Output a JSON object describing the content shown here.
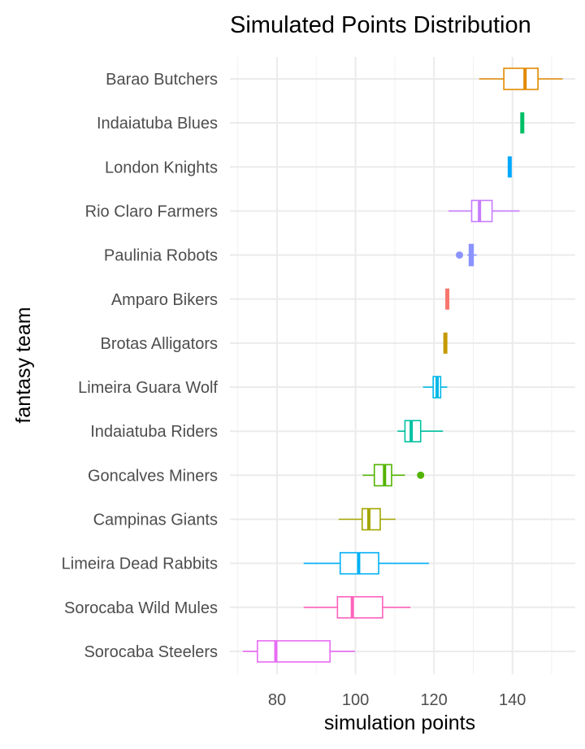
{
  "chart_data": {
    "type": "boxplot",
    "orientation": "horizontal",
    "title": "Simulated Points Distribution",
    "xlabel": "simulation points",
    "ylabel": "fantasy team",
    "xlim": [
      68,
      156
    ],
    "x_ticks": [
      80,
      100,
      120,
      140
    ],
    "grid": true,
    "legend": "none",
    "categories": [
      "Barao Butchers",
      "Indaiatuba Blues",
      "London Knights",
      "Rio Claro Farmers",
      "Paulinia Robots",
      "Amparo Bikers",
      "Brotas Alligators",
      "Limeira Guara Wolf",
      "Indaiatuba Riders",
      "Goncalves Miners",
      "Campinas Giants",
      "Limeira Dead Rabbits",
      "Sorocaba Wild Mules",
      "Sorocaba Steelers"
    ],
    "series": [
      {
        "name": "Barao Butchers",
        "color": "#E18A00",
        "whisker_low": 131.5,
        "q1": 137.8,
        "median": 143.2,
        "q3": 146.5,
        "whisker_high": 152.8,
        "outliers": []
      },
      {
        "name": "Indaiatuba Blues",
        "color": "#00BE67",
        "whisker_low": 142.5,
        "q1": 142.5,
        "median": 142.5,
        "q3": 142.5,
        "whisker_high": 142.5,
        "outliers": []
      },
      {
        "name": "London Knights",
        "color": "#00A9FF",
        "whisker_low": 139.3,
        "q1": 139.3,
        "median": 139.3,
        "q3": 139.3,
        "whisker_high": 139.3,
        "outliers": []
      },
      {
        "name": "Rio Claro Farmers",
        "color": "#C77CFF",
        "whisker_low": 123.7,
        "q1": 129.6,
        "median": 131.6,
        "q3": 134.8,
        "whisker_high": 141.8,
        "outliers": []
      },
      {
        "name": "Paulinia Robots",
        "color": "#8B93FF",
        "whisker_low": 128.5,
        "q1": 129.0,
        "median": 129.5,
        "q3": 130.0,
        "whisker_high": 130.9,
        "outliers": [
          126.5
        ]
      },
      {
        "name": "Amparo Bikers",
        "color": "#F8766D",
        "whisker_low": 123.4,
        "q1": 123.4,
        "median": 123.4,
        "q3": 123.4,
        "whisker_high": 123.4,
        "outliers": []
      },
      {
        "name": "Brotas Alligators",
        "color": "#C49A00",
        "whisker_low": 122.9,
        "q1": 122.9,
        "median": 122.9,
        "q3": 122.9,
        "whisker_high": 122.9,
        "outliers": []
      },
      {
        "name": "Limeira Guara Wolf",
        "color": "#00B8E7",
        "whisker_low": 117.2,
        "q1": 119.8,
        "median": 120.8,
        "q3": 121.7,
        "whisker_high": 123.4,
        "outliers": []
      },
      {
        "name": "Indaiatuba Riders",
        "color": "#00C1A3",
        "whisker_low": 110.7,
        "q1": 112.6,
        "median": 114.2,
        "q3": 116.6,
        "whisker_high": 122.3,
        "outliers": []
      },
      {
        "name": "Goncalves Miners",
        "color": "#53B400",
        "whisker_low": 101.8,
        "q1": 104.8,
        "median": 107.4,
        "q3": 109.2,
        "whisker_high": 112.6,
        "outliers": [
          116.6
        ]
      },
      {
        "name": "Campinas Giants",
        "color": "#A3A500",
        "whisker_low": 95.7,
        "q1": 101.7,
        "median": 103.4,
        "q3": 106.3,
        "whisker_high": 110.2,
        "outliers": []
      },
      {
        "name": "Limeira Dead Rabbits",
        "color": "#00B0F6",
        "whisker_low": 86.8,
        "q1": 96.1,
        "median": 100.8,
        "q3": 105.9,
        "whisker_high": 118.7,
        "outliers": []
      },
      {
        "name": "Sorocaba Wild Mules",
        "color": "#FF62BC",
        "whisker_low": 86.8,
        "q1": 95.4,
        "median": 99.2,
        "q3": 106.9,
        "whisker_high": 114.0,
        "outliers": []
      },
      {
        "name": "Sorocaba Steelers",
        "color": "#E76BF3",
        "whisker_low": 71.3,
        "q1": 75.0,
        "median": 79.7,
        "q3": 93.5,
        "whisker_high": 99.9,
        "outliers": []
      }
    ]
  }
}
